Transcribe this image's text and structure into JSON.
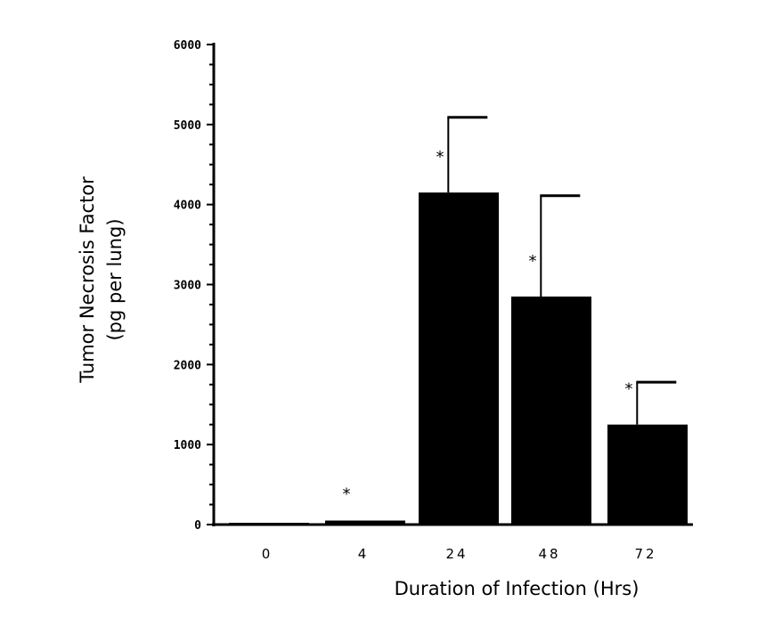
{
  "chart_data": {
    "type": "bar",
    "categories": [
      "0",
      "4",
      "24",
      "48",
      "72"
    ],
    "values": [
      20,
      50,
      4150,
      2850,
      1250
    ],
    "error_upper": [
      0,
      0,
      5090,
      4110,
      1780
    ],
    "significance_marks": [
      "",
      "*",
      "*",
      "*",
      "*"
    ],
    "ylabel_line1": "Tumor Necrosis Factor",
    "ylabel_line2": "(pg per lung)",
    "xlabel": "Duration of Infection (Hrs)",
    "ylim": [
      0,
      6000
    ],
    "yticks": [
      "0",
      "1000",
      "2000",
      "3000",
      "4000",
      "5000",
      "6000"
    ],
    "ytick_values": [
      0,
      1000,
      2000,
      3000,
      4000,
      5000,
      6000
    ],
    "bar_color": "#000000",
    "grid": false,
    "legend": "none"
  }
}
